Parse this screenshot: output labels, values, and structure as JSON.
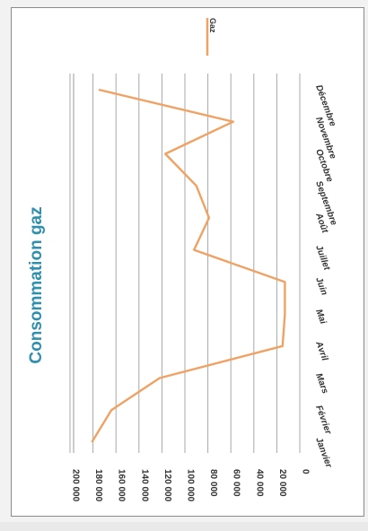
{
  "chart_data": {
    "type": "line",
    "title": "Consommation gaz",
    "categories": [
      "Janvier",
      "Février",
      "Mars",
      "Avril",
      "Mai",
      "Juin",
      "Juillet",
      "Août",
      "Septembre",
      "Octobre",
      "Novembre",
      "Décembre"
    ],
    "series": [
      {
        "name": "Gaz",
        "color": "#f0a264",
        "values": [
          181000,
          164000,
          122000,
          15000,
          13000,
          13000,
          92000,
          79000,
          90000,
          117000,
          58000,
          175000
        ]
      }
    ],
    "yticks": [
      "0",
      "20 000",
      "40 000",
      "60 000",
      "80 000",
      "100 000",
      "120 000",
      "140 000",
      "160 000",
      "180 000",
      "200 000"
    ],
    "ylim": [
      0,
      200000
    ],
    "grid": true,
    "legend_position": "top-right",
    "orientation": "rotated-90-clockwise"
  }
}
